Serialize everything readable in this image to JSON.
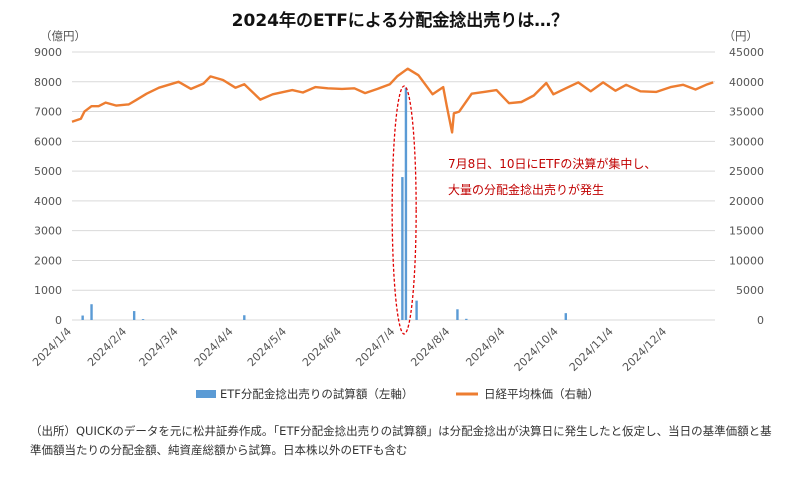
{
  "chart_data": {
    "type": "bar+line",
    "title": "2024年のETFによる分配金捻出売りは…？",
    "left_axis_unit": "（億円）",
    "right_axis_unit": "（円）",
    "left_ylim": [
      0,
      9000
    ],
    "right_ylim": [
      0,
      45000
    ],
    "left_ticks": [
      "0",
      "1000",
      "2000",
      "3000",
      "4000",
      "5000",
      "6000",
      "7000",
      "8000",
      "9000"
    ],
    "right_ticks": [
      "0",
      "5000",
      "10000",
      "15000",
      "20000",
      "25000",
      "30000",
      "35000",
      "40000",
      "45000"
    ],
    "x_ticks": [
      "2024/1/4",
      "2024/2/4",
      "2024/3/4",
      "2024/4/4",
      "2024/5/4",
      "2024/6/4",
      "2024/7/4",
      "2024/8/4",
      "2024/9/4",
      "2024/10/4",
      "2024/11/4",
      "2024/12/4"
    ],
    "grid": true,
    "legend_position": "bottom",
    "series": [
      {
        "name": "ETF分配金捻出売りの試算額（左軸）",
        "type": "bar",
        "axis": "left",
        "color": "#5b9bd5",
        "points": [
          {
            "x": "2024/1/10",
            "y": 150
          },
          {
            "x": "2024/1/15",
            "y": 530
          },
          {
            "x": "2024/2/8",
            "y": 300
          },
          {
            "x": "2024/2/13",
            "y": 30
          },
          {
            "x": "2024/4/10",
            "y": 160
          },
          {
            "x": "2024/7/8",
            "y": 4800
          },
          {
            "x": "2024/7/10",
            "y": 7800
          },
          {
            "x": "2024/7/16",
            "y": 650
          },
          {
            "x": "2024/8/8",
            "y": 360
          },
          {
            "x": "2024/8/13",
            "y": 40
          },
          {
            "x": "2024/10/8",
            "y": 230
          }
        ]
      },
      {
        "name": "日経平均株価（右軸）",
        "type": "line",
        "axis": "right",
        "color": "#ed7d31",
        "points": [
          {
            "x": "2024/1/4",
            "y": 33300
          },
          {
            "x": "2024/1/9",
            "y": 33800
          },
          {
            "x": "2024/1/11",
            "y": 35000
          },
          {
            "x": "2024/1/15",
            "y": 35900
          },
          {
            "x": "2024/1/19",
            "y": 35900
          },
          {
            "x": "2024/1/23",
            "y": 36500
          },
          {
            "x": "2024/1/29",
            "y": 36000
          },
          {
            "x": "2024/2/5",
            "y": 36200
          },
          {
            "x": "2024/2/9",
            "y": 36900
          },
          {
            "x": "2024/2/15",
            "y": 38000
          },
          {
            "x": "2024/2/22",
            "y": 39000
          },
          {
            "x": "2024/3/4",
            "y": 40000
          },
          {
            "x": "2024/3/11",
            "y": 38800
          },
          {
            "x": "2024/3/18",
            "y": 39700
          },
          {
            "x": "2024/3/22",
            "y": 40900
          },
          {
            "x": "2024/3/29",
            "y": 40300
          },
          {
            "x": "2024/4/5",
            "y": 39000
          },
          {
            "x": "2024/4/10",
            "y": 39600
          },
          {
            "x": "2024/4/19",
            "y": 37000
          },
          {
            "x": "2024/4/26",
            "y": 37900
          },
          {
            "x": "2024/5/7",
            "y": 38600
          },
          {
            "x": "2024/5/13",
            "y": 38200
          },
          {
            "x": "2024/5/20",
            "y": 39100
          },
          {
            "x": "2024/5/27",
            "y": 38900
          },
          {
            "x": "2024/6/4",
            "y": 38800
          },
          {
            "x": "2024/6/11",
            "y": 38900
          },
          {
            "x": "2024/6/17",
            "y": 38100
          },
          {
            "x": "2024/6/24",
            "y": 38800
          },
          {
            "x": "2024/7/1",
            "y": 39600
          },
          {
            "x": "2024/7/5",
            "y": 40900
          },
          {
            "x": "2024/7/11",
            "y": 42200
          },
          {
            "x": "2024/7/17",
            "y": 41100
          },
          {
            "x": "2024/7/25",
            "y": 37900
          },
          {
            "x": "2024/7/31",
            "y": 39100
          },
          {
            "x": "2024/8/2",
            "y": 35900
          },
          {
            "x": "2024/8/5",
            "y": 31500
          },
          {
            "x": "2024/8/6",
            "y": 34700
          },
          {
            "x": "2024/8/9",
            "y": 35000
          },
          {
            "x": "2024/8/16",
            "y": 38000
          },
          {
            "x": "2024/8/23",
            "y": 38300
          },
          {
            "x": "2024/8/30",
            "y": 38600
          },
          {
            "x": "2024/9/6",
            "y": 36400
          },
          {
            "x": "2024/9/13",
            "y": 36600
          },
          {
            "x": "2024/9/20",
            "y": 37700
          },
          {
            "x": "2024/9/27",
            "y": 39800
          },
          {
            "x": "2024/10/1",
            "y": 37900
          },
          {
            "x": "2024/10/8",
            "y": 38900
          },
          {
            "x": "2024/10/15",
            "y": 39900
          },
          {
            "x": "2024/10/22",
            "y": 38400
          },
          {
            "x": "2024/10/29",
            "y": 39900
          },
          {
            "x": "2024/11/5",
            "y": 38500
          },
          {
            "x": "2024/11/11",
            "y": 39500
          },
          {
            "x": "2024/11/19",
            "y": 38400
          },
          {
            "x": "2024/11/28",
            "y": 38300
          },
          {
            "x": "2024/12/6",
            "y": 39100
          },
          {
            "x": "2024/12/13",
            "y": 39500
          },
          {
            "x": "2024/12/20",
            "y": 38700
          },
          {
            "x": "2024/12/26",
            "y": 39500
          },
          {
            "x": "2024/12/30",
            "y": 39900
          }
        ]
      }
    ],
    "annotation": {
      "lines": [
        "7月8日、10日にETFの決算が集中し、",
        "大量の分配金捻出売りが発生"
      ],
      "target_dates": [
        "2024/7/8",
        "2024/7/10"
      ]
    }
  },
  "source_note": "（出所）QUICKのデータを元に松井証券作成。「ETF分配金捻出売りの試算額」は分配金捻出が決算日に発生したと仮定し、当日の基準価額と基準価額当たりの分配金額、純資産総額から試算。日本株以外のETFも含む"
}
